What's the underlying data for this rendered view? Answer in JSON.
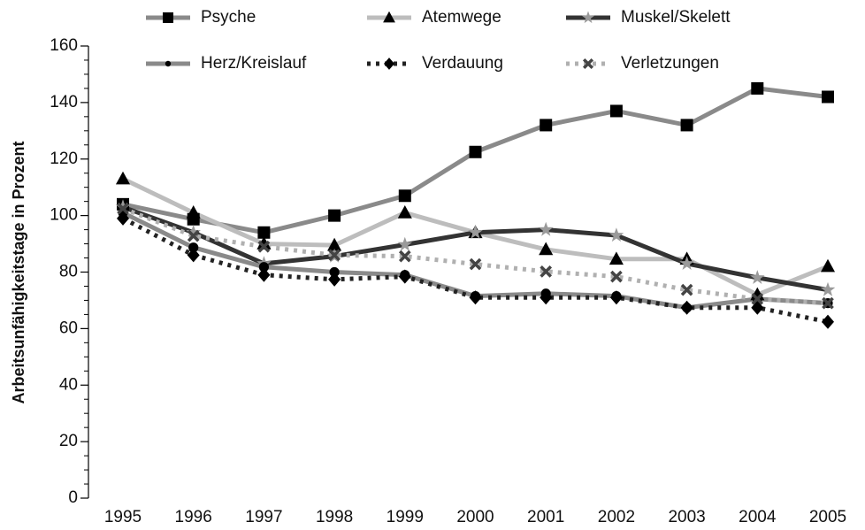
{
  "chart_data": {
    "type": "line",
    "y_label": "Arbeitsunfähigkeitstage in Prozent",
    "categories": [
      "1995",
      "1996",
      "1997",
      "1998",
      "1999",
      "2000",
      "2001",
      "2002",
      "2003",
      "2004",
      "2005"
    ],
    "ylim": [
      0,
      160
    ],
    "yticks": [
      0,
      20,
      40,
      60,
      80,
      100,
      120,
      140,
      160
    ],
    "series": [
      {
        "name": "Psyche",
        "color": "#8a8a8a",
        "marker": "square",
        "marker_color": "#000000",
        "dash": "solid",
        "values": [
          104,
          98.7,
          94,
          100,
          107,
          122.5,
          132,
          137,
          132,
          145,
          142
        ]
      },
      {
        "name": "Atemwege",
        "color": "#bdbdbd",
        "marker": "triangle",
        "marker_color": "#000000",
        "dash": "solid",
        "values": [
          113,
          101,
          90,
          89.5,
          101,
          94,
          88,
          84.6,
          84.6,
          72,
          82
        ]
      },
      {
        "name": "Muskel/Skelett",
        "color": "#333333",
        "marker": "star",
        "marker_color": "#9a9a9a",
        "dash": "solid",
        "values": [
          103,
          94,
          83,
          85.6,
          89.7,
          94,
          95,
          93,
          83,
          78,
          73.7
        ]
      },
      {
        "name": "Herz/Kreislauf",
        "color": "#8a8a8a",
        "marker": "circle",
        "marker_color": "#000000",
        "dash": "solid",
        "values": [
          101,
          88.7,
          81.8,
          80,
          79,
          71.5,
          72.4,
          71.5,
          67.4,
          70.5,
          69
        ]
      },
      {
        "name": "Verdauung",
        "color": "#222222",
        "marker": "diamond",
        "marker_color": "#000000",
        "dash": "dot",
        "values": [
          99,
          86,
          79,
          77.4,
          78.4,
          71,
          71,
          71,
          67.4,
          67.4,
          62.4
        ]
      },
      {
        "name": "Verletzungen",
        "color": "#b0b0b0",
        "marker": "x",
        "marker_color": "#444444",
        "dash": "dot",
        "values": [
          102.5,
          92.8,
          89,
          86,
          85.6,
          82.8,
          80.2,
          78.4,
          73.7,
          70.5,
          69
        ]
      }
    ]
  }
}
